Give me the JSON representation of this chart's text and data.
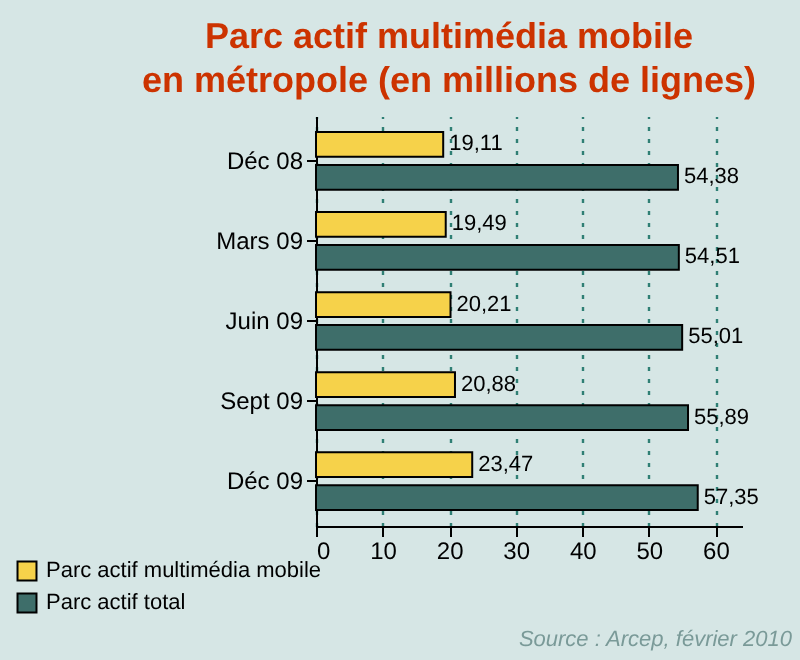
{
  "chart_data": {
    "type": "bar",
    "orientation": "horizontal",
    "title": "Parc actif multimédia mobile\nen métropole (en millions de lignes)",
    "categories": [
      "Déc 08",
      "Mars 09",
      "Juin 09",
      "Sept 09",
      "Déc 09"
    ],
    "series": [
      {
        "name": "Parc actif multimédia mobile",
        "color": "#f6d24a",
        "values": [
          19.11,
          19.49,
          20.21,
          20.88,
          23.47
        ],
        "value_labels": [
          "19,11",
          "19,49",
          "20,21",
          "20,88",
          "23,47"
        ]
      },
      {
        "name": "Parc actif total",
        "color": "#3e6e6a",
        "values": [
          54.38,
          54.51,
          55.01,
          55.89,
          57.35
        ],
        "value_labels": [
          "54,38",
          "54,51",
          "55,01",
          "55,89",
          "57,35"
        ]
      }
    ],
    "xlim": [
      0,
      64
    ],
    "xticks": [
      0,
      10,
      20,
      30,
      40,
      50,
      60
    ],
    "grid": "x",
    "legend": "bottom left",
    "annotations": [
      "Source : Arcep, février 2010"
    ]
  }
}
